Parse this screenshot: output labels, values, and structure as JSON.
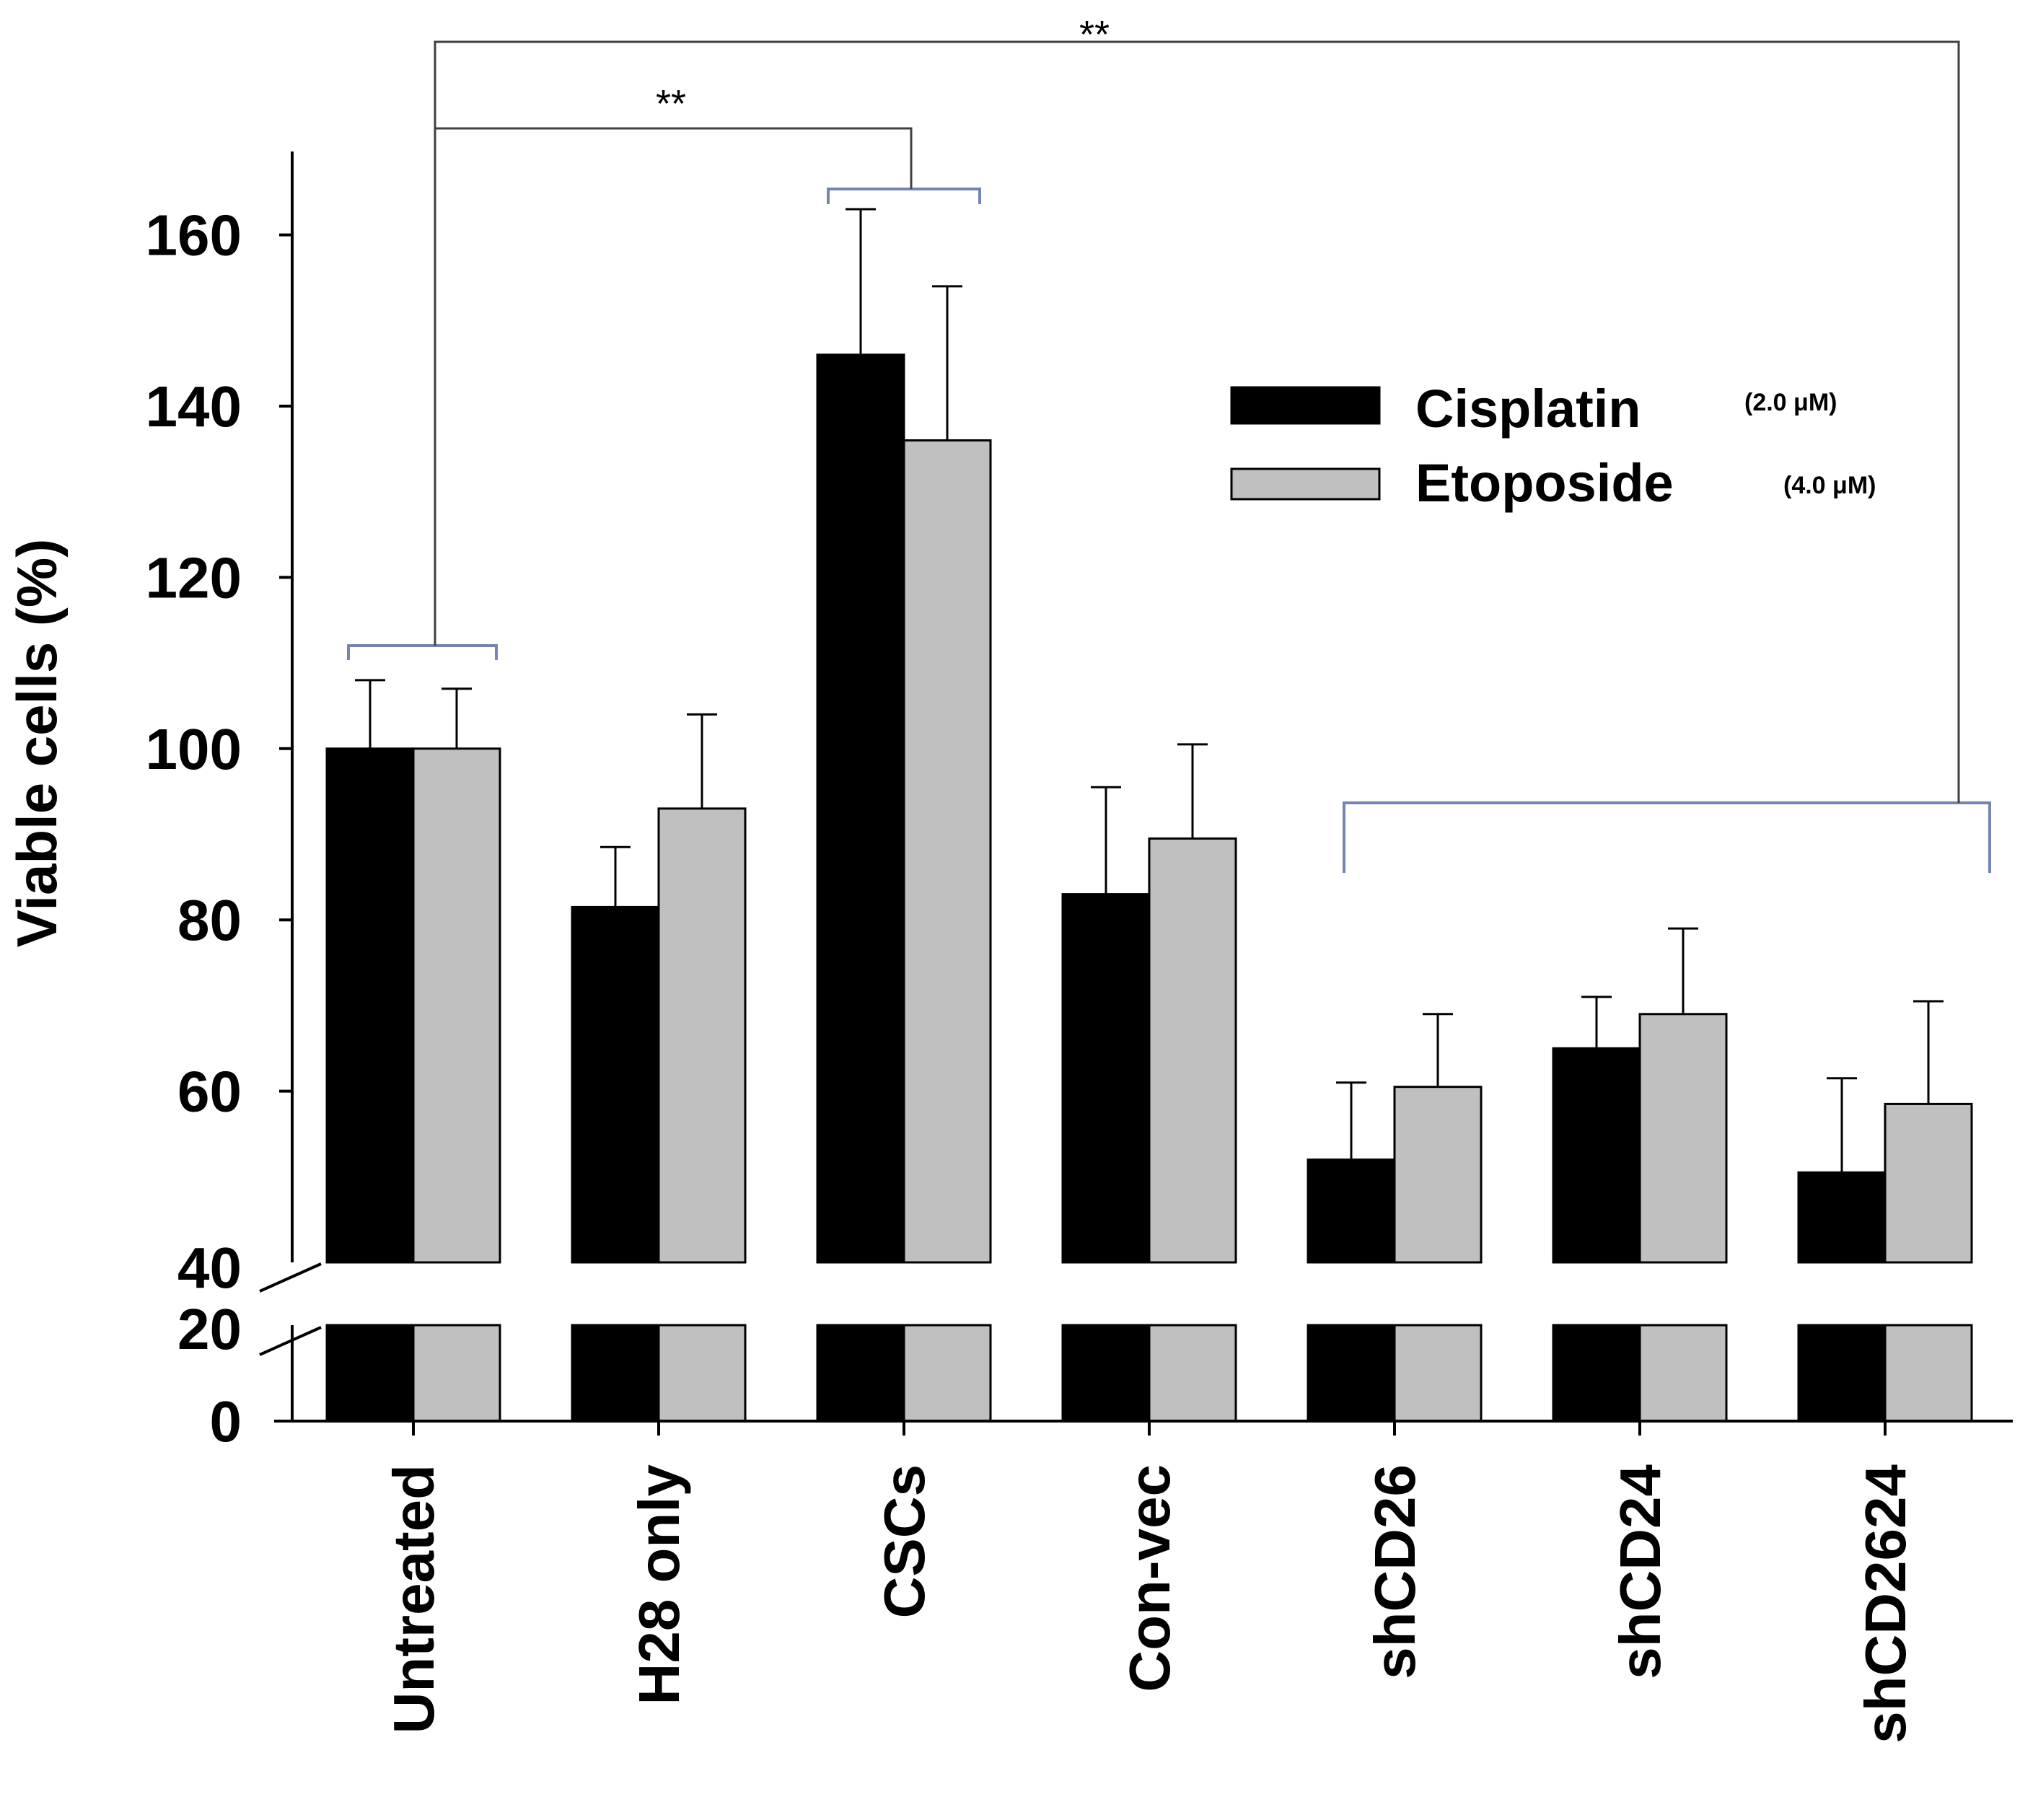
{
  "chart_data": {
    "type": "bar",
    "title": "",
    "xlabel": "",
    "ylabel": "Viable cells (%)",
    "categories": [
      "Untreated",
      "H28 only",
      "CSCs",
      "Con-vec",
      "shCD26",
      "shCD24",
      "shCD2624"
    ],
    "series": [
      {
        "name": "Cisplatin",
        "concentration": "(2.0 μM)",
        "color": "#000000",
        "values": [
          100,
          81.5,
          146,
          83,
          52,
          65,
          50.5
        ],
        "errors": [
          8,
          7,
          17,
          12.5,
          9,
          6,
          11
        ]
      },
      {
        "name": "Etoposide",
        "concentration": "(4.0 μM)",
        "color": "#c0c0c0",
        "values": [
          100,
          93,
          136,
          89.5,
          60.5,
          69,
          58.5
        ],
        "errors": [
          7,
          11,
          18,
          11,
          8.5,
          10,
          12
        ]
      }
    ],
    "yticks": [
      0,
      20,
      40,
      60,
      80,
      100,
      120,
      140,
      160
    ],
    "ytick_labels": [
      "0",
      "20",
      "40",
      "60",
      "80",
      "100",
      "120",
      "140",
      "160"
    ],
    "axis_break": [
      20,
      40
    ],
    "ylim": [
      0,
      170
    ],
    "legend_position": "top-right",
    "significance": [
      {
        "label": "**",
        "from": "Untreated",
        "to": "CSCs"
      },
      {
        "label": "**",
        "from": "Untreated",
        "to": [
          "shCD26",
          "shCD24",
          "shCD2624"
        ]
      }
    ]
  }
}
